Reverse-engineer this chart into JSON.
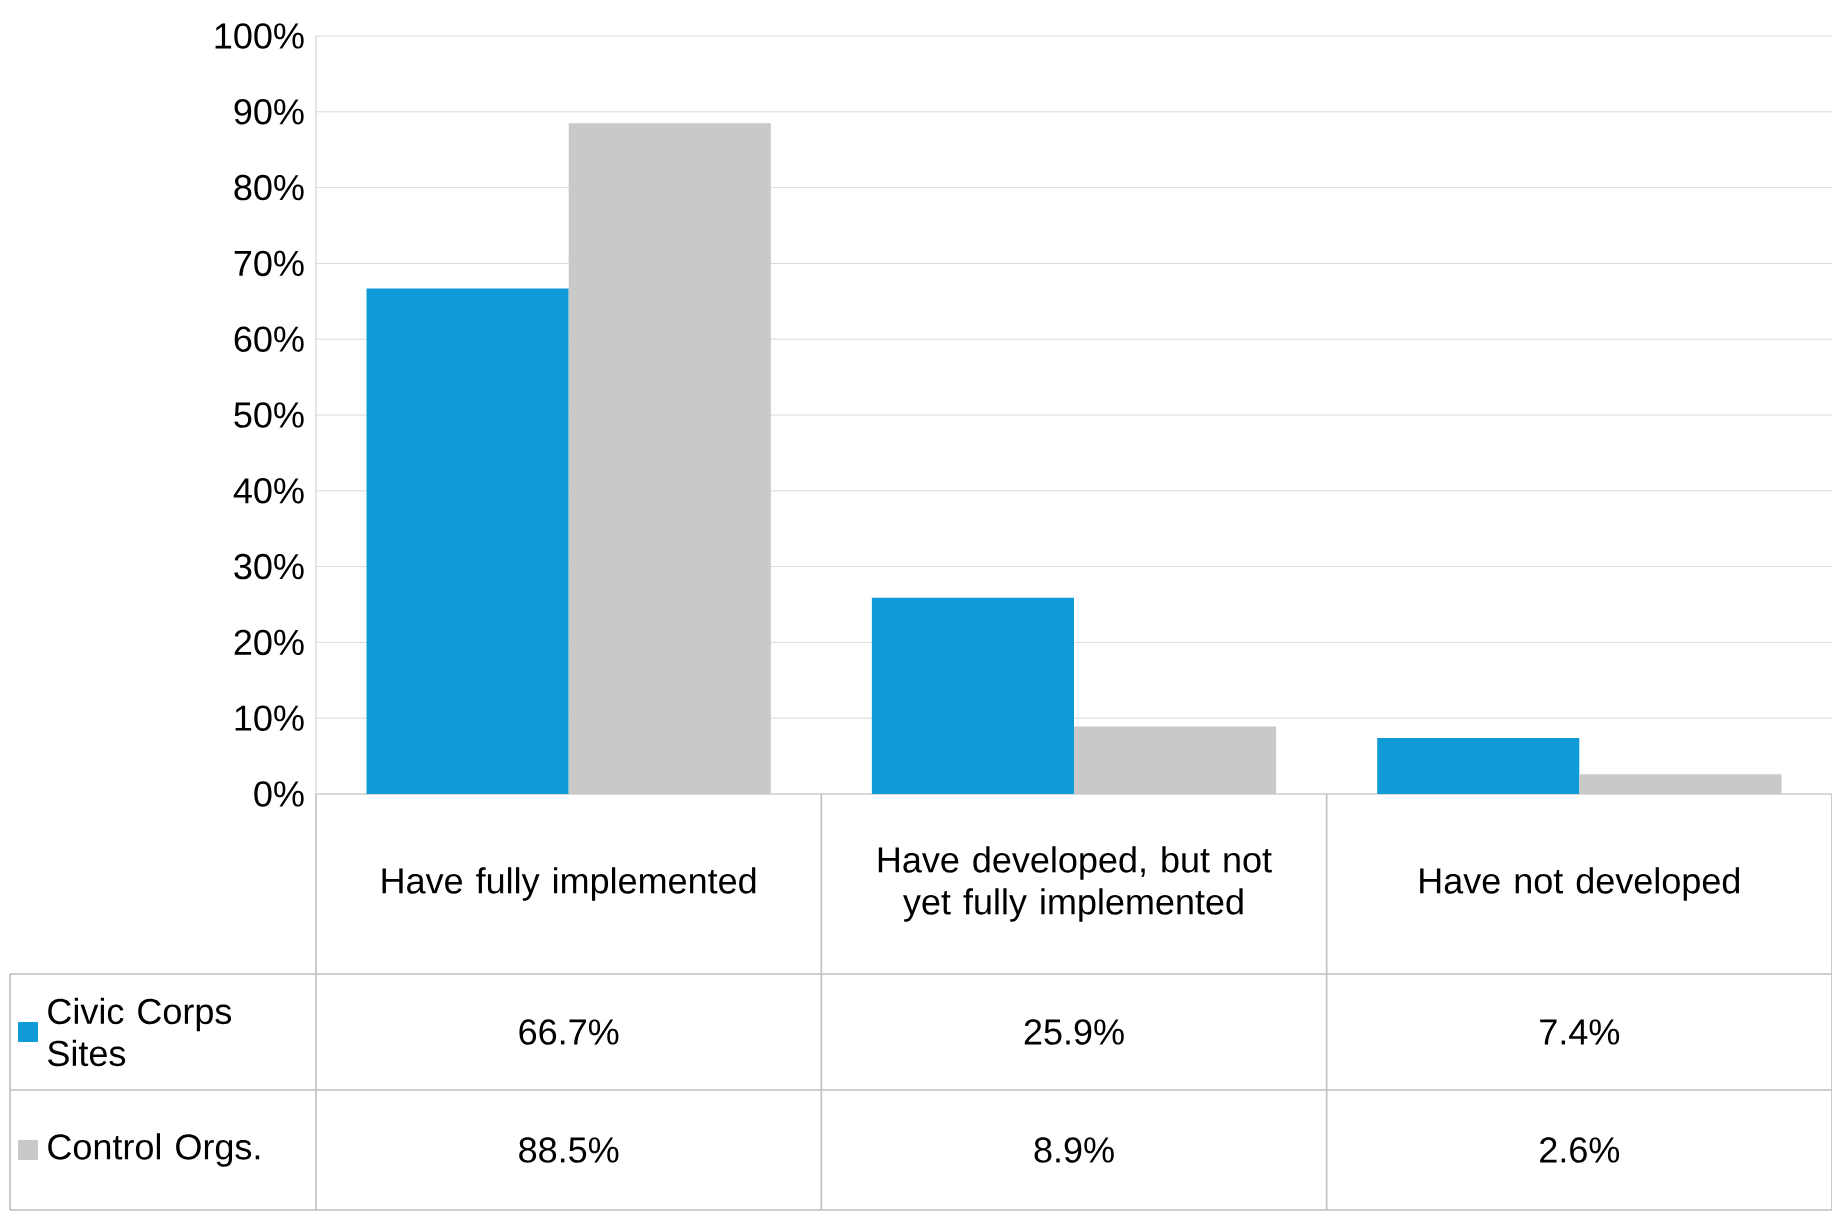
{
  "chart_data": {
    "type": "bar",
    "categories": [
      "Have fully implemented",
      "Have developed, but not yet fully implemented",
      "Have not developed"
    ],
    "series": [
      {
        "name": "Civic Corps Sites",
        "color": "#0f9bd7",
        "values": [
          66.7,
          25.9,
          7.4
        ],
        "value_labels": [
          "66.7%",
          "25.9%",
          "7.4%"
        ]
      },
      {
        "name": "Control Orgs.",
        "color": "#c9c9c9",
        "values": [
          88.5,
          8.9,
          2.6
        ],
        "value_labels": [
          "88.5%",
          "8.9%",
          "2.6%"
        ]
      }
    ],
    "ylim": [
      0,
      100
    ],
    "yticks": [
      {
        "value": 0,
        "label": "0%"
      },
      {
        "value": 10,
        "label": "10%"
      },
      {
        "value": 20,
        "label": "20%"
      },
      {
        "value": 30,
        "label": "30%"
      },
      {
        "value": 40,
        "label": "40%"
      },
      {
        "value": 50,
        "label": "50%"
      },
      {
        "value": 60,
        "label": "60%"
      },
      {
        "value": 70,
        "label": "70%"
      },
      {
        "value": 80,
        "label": "80%"
      },
      {
        "value": 90,
        "label": "90%"
      },
      {
        "value": 100,
        "label": "100%"
      }
    ],
    "grid": "y",
    "legend": "bottom"
  }
}
